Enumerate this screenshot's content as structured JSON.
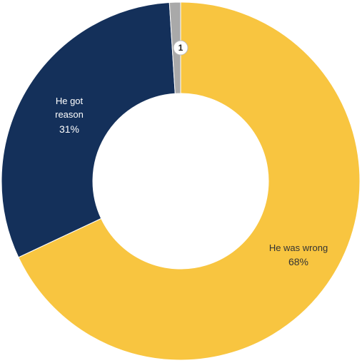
{
  "chart_data": {
    "type": "pie",
    "variant": "donut",
    "slices": [
      {
        "label": "He was wrong",
        "value": 68,
        "display": "68%",
        "color": "#F8C540",
        "text_color": "#333333"
      },
      {
        "label_lines": [
          "He got",
          "reason"
        ],
        "value": 31,
        "display": "31%",
        "color": "#14305A",
        "text_color": "#FFFFFF"
      },
      {
        "label": "",
        "value": 1,
        "display": "1",
        "color": "#A9A9A9"
      }
    ],
    "legend": "none"
  }
}
